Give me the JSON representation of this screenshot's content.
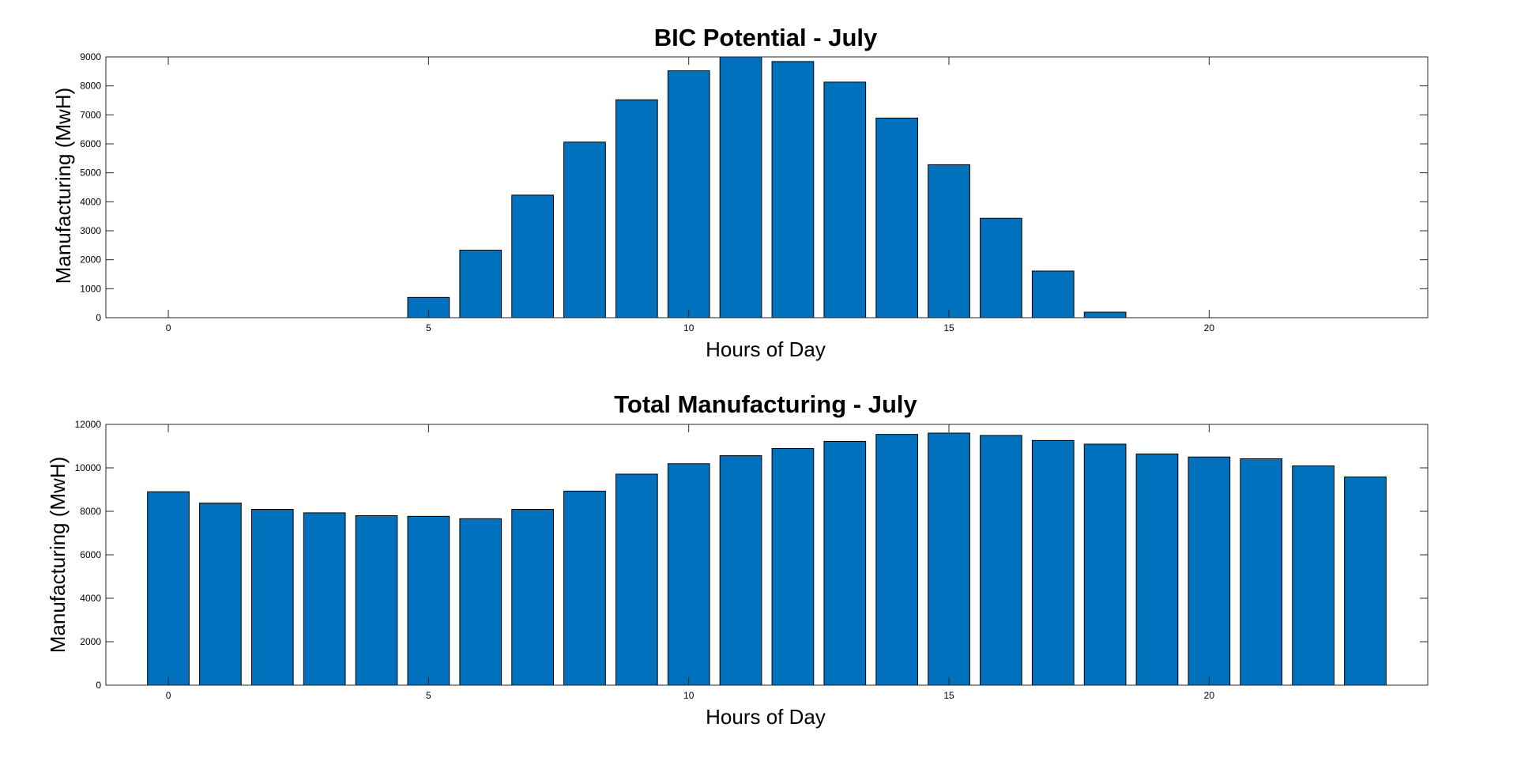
{
  "colors": {
    "bar_fill": "#0072BD",
    "bar_edge": "#000000",
    "axes": "#262626",
    "background": "#ffffff"
  },
  "chart_data": [
    {
      "type": "bar",
      "title": "BIC Potential - July",
      "xlabel": "Hours of Day",
      "ylabel": "Manufacturing (MwH)",
      "x": [
        0,
        1,
        2,
        3,
        4,
        5,
        6,
        7,
        8,
        9,
        10,
        11,
        12,
        13,
        14,
        15,
        16,
        17,
        18,
        19,
        20,
        21,
        22,
        23
      ],
      "values": [
        0,
        0,
        0,
        0,
        0,
        700,
        2330,
        4230,
        6060,
        7520,
        8520,
        9000,
        8840,
        8130,
        6890,
        5280,
        3430,
        1610,
        190,
        0,
        0,
        0,
        0,
        0
      ],
      "xlim": [
        -1.2,
        24.2
      ],
      "ylim": [
        0,
        9000
      ],
      "xticks": [
        0,
        5,
        10,
        15,
        20
      ],
      "yticks": [
        0,
        1000,
        2000,
        3000,
        4000,
        5000,
        6000,
        7000,
        8000,
        9000
      ],
      "xtick_labels": [
        "0",
        "5",
        "10",
        "15",
        "20"
      ],
      "ytick_labels": [
        "0",
        "1000",
        "2000",
        "3000",
        "4000",
        "5000",
        "6000",
        "7000",
        "8000",
        "9000"
      ],
      "grid": false
    },
    {
      "type": "bar",
      "title": "Total Manufacturing - July",
      "xlabel": "Hours of Day",
      "ylabel": "Manufacturing (MwH)",
      "x": [
        0,
        1,
        2,
        3,
        4,
        5,
        6,
        7,
        8,
        9,
        10,
        11,
        12,
        13,
        14,
        15,
        16,
        17,
        18,
        19,
        20,
        21,
        22,
        23
      ],
      "values": [
        8900,
        8380,
        8090,
        7930,
        7800,
        7770,
        7660,
        8090,
        8930,
        9710,
        10190,
        10560,
        10890,
        11220,
        11540,
        11600,
        11490,
        11260,
        11090,
        10640,
        10500,
        10420,
        10090,
        9580
      ],
      "xlim": [
        -1.2,
        24.2
      ],
      "ylim": [
        0,
        12000
      ],
      "xticks": [
        0,
        5,
        10,
        15,
        20
      ],
      "yticks": [
        0,
        2000,
        4000,
        6000,
        8000,
        10000,
        12000
      ],
      "xtick_labels": [
        "0",
        "5",
        "10",
        "15",
        "20"
      ],
      "ytick_labels": [
        "0",
        "2000",
        "4000",
        "6000",
        "8000",
        "10000",
        "12000"
      ],
      "grid": false
    }
  ]
}
